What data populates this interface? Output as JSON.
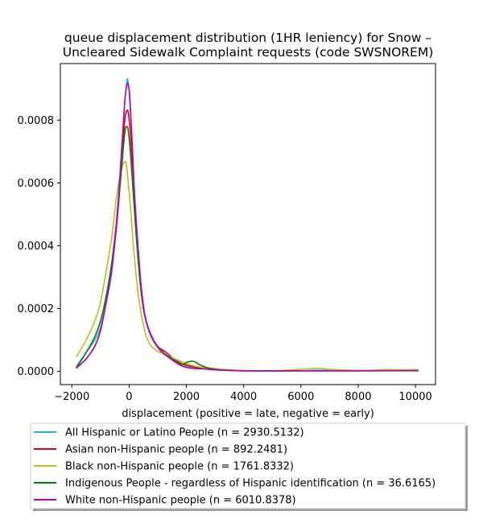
{
  "chart_data": {
    "type": "line",
    "title_lines": [
      "queue displacement distribution (1HR leniency) for Snow –",
      "Uncleared Sidewalk Complaint  requests (code SWSNOREM)"
    ],
    "xlabel": "displacement (positive = late, negative = early)",
    "ylabel": "",
    "xlim": [
      -2400,
      10700
    ],
    "ylim": [
      -4.2e-05,
      0.00098
    ],
    "x_ticks": [
      -2000,
      0,
      2000,
      4000,
      6000,
      8000,
      10000
    ],
    "x_tick_labels": [
      "−2000",
      "0",
      "2000",
      "4000",
      "6000",
      "8000",
      "10000"
    ],
    "y_ticks": [
      0,
      0.0002,
      0.0004,
      0.0006,
      0.0008
    ],
    "y_tick_labels": [
      "0.0000",
      "0.0002",
      "0.0004",
      "0.0006",
      "0.0008"
    ],
    "grid": false,
    "legend_position": "below plot",
    "series": [
      {
        "name": "All Hispanic or Latino People (n = 2930.5132)",
        "color": "#17becf",
        "points": [
          [
            -1850,
            1.5e-05
          ],
          [
            -1500,
            6e-05
          ],
          [
            -1200,
            0.0001
          ],
          [
            -1000,
            0.00014
          ],
          [
            -800,
            0.00022
          ],
          [
            -600,
            0.00032
          ],
          [
            -400,
            0.00052
          ],
          [
            -250,
            0.00072
          ],
          [
            -150,
            0.00086
          ],
          [
            -80,
            0.00092
          ],
          [
            -50,
            0.00093
          ],
          [
            0,
            0.00089
          ],
          [
            100,
            0.00074
          ],
          [
            200,
            0.00055
          ],
          [
            350,
            0.00035
          ],
          [
            500,
            0.0002
          ],
          [
            700,
            0.00013
          ],
          [
            900,
            9e-05
          ],
          [
            1200,
            5.5e-05
          ],
          [
            1600,
            4e-05
          ],
          [
            1900,
            2e-05
          ],
          [
            2100,
            1.5e-05
          ],
          [
            2300,
            1.2e-05
          ],
          [
            2600,
            1e-05
          ],
          [
            3000,
            5e-06
          ],
          [
            3500,
            3e-06
          ],
          [
            4000,
            2e-06
          ],
          [
            5000,
            1e-06
          ],
          [
            6000,
            2e-06
          ],
          [
            6500,
            4e-06
          ],
          [
            7000,
            3e-06
          ],
          [
            8000,
            3e-06
          ],
          [
            9000,
            4e-06
          ],
          [
            10100,
            5e-06
          ]
        ]
      },
      {
        "name": "Asian non-Hispanic people (n = 892.2481)",
        "color": "#e8000b",
        "points": [
          [
            -1850,
            1e-05
          ],
          [
            -1500,
            4e-05
          ],
          [
            -1200,
            8e-05
          ],
          [
            -1000,
            0.00013
          ],
          [
            -800,
            0.00022
          ],
          [
            -600,
            0.00033
          ],
          [
            -400,
            0.0005
          ],
          [
            -250,
            0.00068
          ],
          [
            -150,
            0.0008
          ],
          [
            -80,
            0.00083
          ],
          [
            -20,
            0.00082
          ],
          [
            50,
            0.00075
          ],
          [
            150,
            0.00062
          ],
          [
            250,
            0.00046
          ],
          [
            400,
            0.00029
          ],
          [
            550,
            0.00018
          ],
          [
            750,
            0.00012
          ],
          [
            1000,
            8e-05
          ],
          [
            1300,
            6e-05
          ],
          [
            1700,
            3e-05
          ],
          [
            2000,
            2e-05
          ],
          [
            2400,
            1.2e-05
          ],
          [
            2800,
            8e-06
          ],
          [
            3200,
            5e-06
          ],
          [
            4000,
            2e-06
          ],
          [
            6000,
            2e-06
          ],
          [
            8000,
            2e-06
          ],
          [
            10100,
            3e-06
          ]
        ]
      },
      {
        "name": "Black non-Hispanic people (n = 1761.8332)",
        "color": "#bcbd22",
        "points": [
          [
            -1850,
            4.5e-05
          ],
          [
            -1500,
            0.0001
          ],
          [
            -1200,
            0.00016
          ],
          [
            -1000,
            0.00022
          ],
          [
            -800,
            0.00032
          ],
          [
            -600,
            0.00043
          ],
          [
            -450,
            0.00055
          ],
          [
            -300,
            0.00063
          ],
          [
            -180,
            0.000665
          ],
          [
            -100,
            0.00066
          ],
          [
            -30,
            0.0006
          ],
          [
            50,
            0.00052
          ],
          [
            150,
            0.0004
          ],
          [
            300,
            0.00026
          ],
          [
            450,
            0.00017
          ],
          [
            650,
            0.0001
          ],
          [
            900,
            7e-05
          ],
          [
            1200,
            5.5e-05
          ],
          [
            1600,
            4e-05
          ],
          [
            2000,
            2.5e-05
          ],
          [
            2400,
            1.5e-05
          ],
          [
            2900,
            1e-05
          ],
          [
            3500,
            5e-06
          ],
          [
            4500,
            2e-06
          ],
          [
            5500,
            4e-06
          ],
          [
            6200,
            8e-06
          ],
          [
            6600,
            1e-05
          ],
          [
            7000,
            7e-06
          ],
          [
            7600,
            4e-06
          ],
          [
            8300,
            3e-06
          ],
          [
            9000,
            6e-06
          ],
          [
            9500,
            5e-06
          ],
          [
            10100,
            6e-06
          ]
        ]
      },
      {
        "name": "Indigenous People - regardless of Hispanic identification (n = 36.6165)",
        "color": "#008000",
        "points": [
          [
            -1850,
            1e-05
          ],
          [
            -1500,
            6e-05
          ],
          [
            -1200,
            0.00011
          ],
          [
            -1000,
            0.00016
          ],
          [
            -800,
            0.00024
          ],
          [
            -600,
            0.00035
          ],
          [
            -400,
            0.00051
          ],
          [
            -250,
            0.00066
          ],
          [
            -150,
            0.00076
          ],
          [
            -80,
            0.00078
          ],
          [
            -20,
            0.00076
          ],
          [
            60,
            0.00068
          ],
          [
            150,
            0.00056
          ],
          [
            300,
            0.00037
          ],
          [
            450,
            0.00023
          ],
          [
            650,
            0.00014
          ],
          [
            900,
            9e-05
          ],
          [
            1200,
            6e-05
          ],
          [
            1500,
            4e-05
          ],
          [
            1800,
            2.2e-05
          ],
          [
            2050,
            3e-05
          ],
          [
            2250,
            3.2e-05
          ],
          [
            2500,
            2e-05
          ],
          [
            2800,
            1e-05
          ],
          [
            3200,
            5e-06
          ],
          [
            4000,
            2e-06
          ],
          [
            6000,
            2e-06
          ],
          [
            8000,
            2e-06
          ],
          [
            10100,
            2e-06
          ]
        ]
      },
      {
        "name": "White non-Hispanic people (n = 6010.8378)",
        "color": "#bf00bf",
        "points": [
          [
            -1850,
            1e-05
          ],
          [
            -1500,
            4e-05
          ],
          [
            -1200,
            8e-05
          ],
          [
            -1000,
            0.00013
          ],
          [
            -800,
            0.00022
          ],
          [
            -600,
            0.00033
          ],
          [
            -400,
            0.00052
          ],
          [
            -250,
            0.00072
          ],
          [
            -150,
            0.00086
          ],
          [
            -80,
            0.00091
          ],
          [
            -40,
            0.000915
          ],
          [
            20,
            0.00088
          ],
          [
            100,
            0.00074
          ],
          [
            200,
            0.00055
          ],
          [
            350,
            0.00035
          ],
          [
            500,
            0.0002
          ],
          [
            700,
            0.00013
          ],
          [
            900,
            9e-05
          ],
          [
            1200,
            5.8e-05
          ],
          [
            1600,
            3e-05
          ],
          [
            1900,
            1.5e-05
          ],
          [
            2200,
            1e-05
          ],
          [
            2600,
            8e-06
          ],
          [
            3000,
            5e-06
          ],
          [
            4000,
            2e-06
          ],
          [
            6000,
            2e-06
          ],
          [
            8000,
            2e-06
          ],
          [
            10100,
            3e-06
          ]
        ]
      }
    ]
  }
}
